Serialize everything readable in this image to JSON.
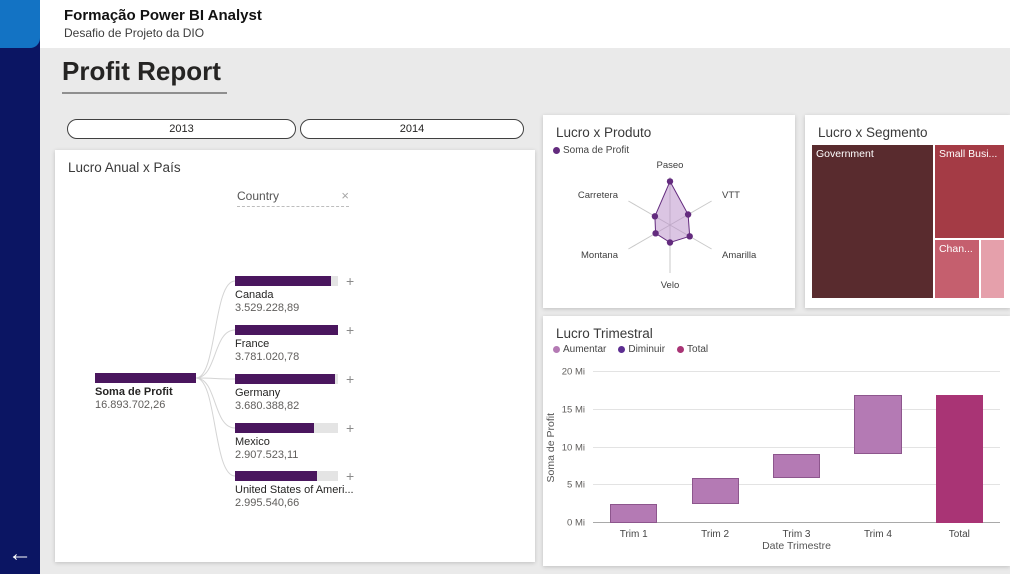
{
  "app": {
    "title": "Formação Power BI Analyst",
    "subtitle": "Desafio de Projeto da DIO"
  },
  "nav": {
    "back_icon": "←"
  },
  "page": {
    "title": "Profit Report"
  },
  "slicers": [
    {
      "label": "2013"
    },
    {
      "label": "2014"
    }
  ],
  "icons": {
    "close": "×",
    "plus": "+"
  },
  "colors": {
    "sidebar": "#0b1563",
    "logo_blue": "#1373c4",
    "canvas": "#eaeaea",
    "accent_purple": "#4a165e"
  },
  "chart_data": [
    {
      "id": "decomp",
      "type": "bar",
      "subtype": "decomposition-tree",
      "title": "Lucro Anual x País",
      "breakdown_field": "Country",
      "bar_color": "#4a165e",
      "root": {
        "label": "Soma de Profit",
        "value_text": "16.893.702,26",
        "value": 16893702.26
      },
      "children": [
        {
          "label": "Canada",
          "value_text": "3.529.228,89",
          "value": 3529228.89
        },
        {
          "label": "France",
          "value_text": "3.781.020,78",
          "value": 3781020.78
        },
        {
          "label": "Germany",
          "value_text": "3.680.388,82",
          "value": 3680388.82
        },
        {
          "label": "Mexico",
          "value_text": "2.907.523,11",
          "value": 2907523.11
        },
        {
          "label": "United States of Ameri...",
          "value_text": "2.995.540,66",
          "value": 2995540.66
        }
      ]
    },
    {
      "id": "radar",
      "type": "line",
      "subtype": "radar",
      "title": "Lucro x Produto",
      "legend": [
        {
          "label": "Soma de Profit",
          "color": "#632b7e"
        }
      ],
      "categories": [
        "Paseo",
        "VTT",
        "Amarilla",
        "Velo",
        "Montana",
        "Carretera"
      ],
      "values": [
        5.0,
        2.4,
        2.6,
        2.0,
        1.9,
        2.0
      ],
      "max": 5.5,
      "note": "values in Mi, estimated from chart proportions",
      "fill_color": "#b78cc7",
      "dot_color": "#632b7e"
    },
    {
      "id": "treemap",
      "type": "pie",
      "subtype": "treemap",
      "title": "Lucro x Segmento",
      "segments": [
        {
          "label": "Government",
          "color": "#592b2e",
          "share": 52
        },
        {
          "label": "Small Busi...",
          "color": "#a43b45",
          "share": 25
        },
        {
          "label": "Chan...",
          "color": "#c55f6e",
          "share": 13
        },
        {
          "label": "",
          "color": "#e5a0ab",
          "share": 10
        }
      ]
    },
    {
      "id": "waterfall",
      "type": "bar",
      "subtype": "waterfall",
      "title": "Lucro Trimestral",
      "legend": [
        {
          "label": "Aumentar",
          "color": "#b47ab4"
        },
        {
          "label": "Diminuir",
          "color": "#5c2d91"
        },
        {
          "label": "Total",
          "color": "#a93475"
        }
      ],
      "categories": [
        "Trim 1",
        "Trim 2",
        "Trim 3",
        "Trim 4",
        "Total"
      ],
      "increments": [
        2.5,
        3.5,
        3.2,
        7.7
      ],
      "total": 16.9,
      "ymax": 20,
      "yticks": [
        "0 Mi",
        "5 Mi",
        "10 Mi",
        "15 Mi",
        "20 Mi"
      ],
      "xlabel": "Date Trimestre",
      "ylabel": "Soma de Profit"
    }
  ]
}
